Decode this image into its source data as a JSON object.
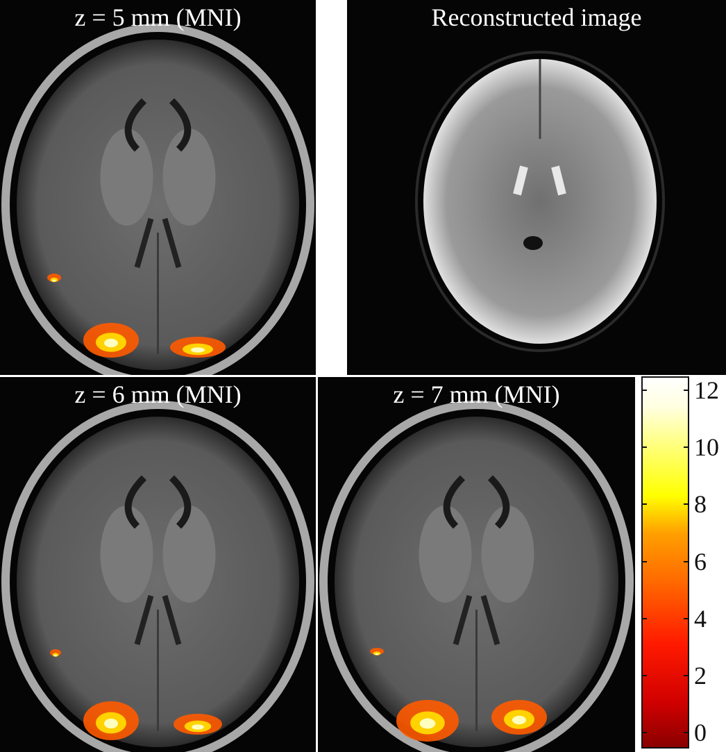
{
  "panels": [
    {
      "id": "top-left",
      "title": "z = 5 mm (MNI)",
      "modality": "T1 anatomical with activation overlay"
    },
    {
      "id": "top-right",
      "title": "Reconstructed image",
      "modality": "EPI reconstruction"
    },
    {
      "id": "bottom-left",
      "title": "z = 6 mm (MNI)",
      "modality": "T1 anatomical with activation overlay"
    },
    {
      "id": "bottom-middle",
      "title": "z = 7 mm (MNI)",
      "modality": "T1 anatomical with activation overlay"
    }
  ],
  "colorbar": {
    "colormap": "hot",
    "range": [
      0,
      12
    ],
    "ticks": [
      "0",
      "2",
      "4",
      "6",
      "8",
      "10",
      "12"
    ],
    "colors": [
      "#8a0000",
      "#ff1a00",
      "#ff8c00",
      "#ffff00",
      "#ffffff"
    ]
  }
}
